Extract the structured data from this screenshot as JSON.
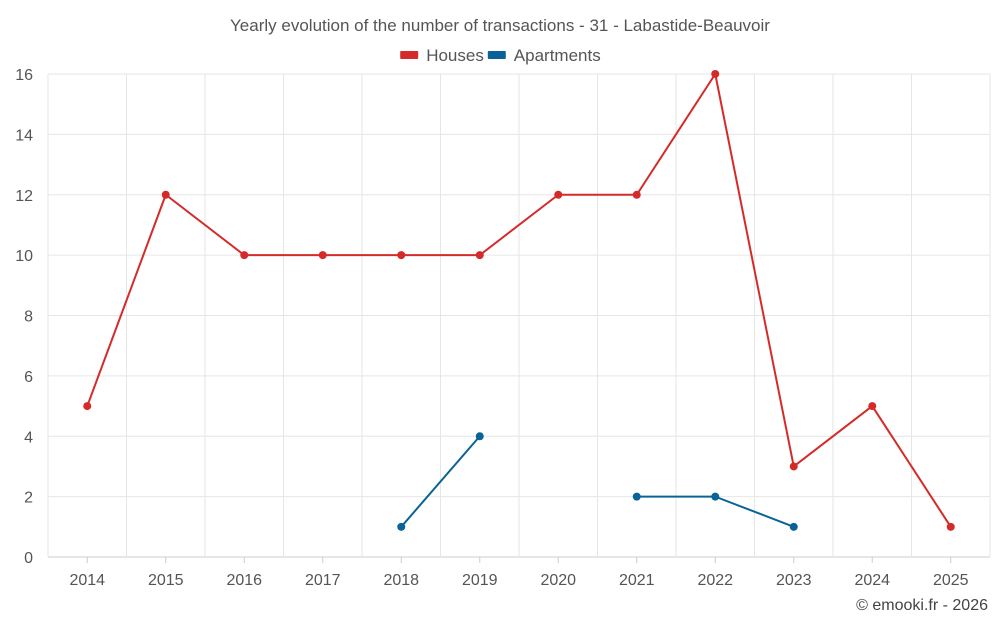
{
  "chart_data": {
    "type": "line",
    "title": "Yearly evolution of the number of transactions - 31 - Labastide-Beauvoir",
    "x": [
      "2014",
      "2015",
      "2016",
      "2017",
      "2018",
      "2019",
      "2020",
      "2021",
      "2022",
      "2023",
      "2024",
      "2025"
    ],
    "ylim": [
      0,
      16
    ],
    "yticks": [
      0,
      2,
      4,
      6,
      8,
      10,
      12,
      14,
      16
    ],
    "grid": true,
    "legend_position": "top-center",
    "series": [
      {
        "name": "Houses",
        "color": "#d42a2a",
        "values": [
          5,
          12,
          10,
          10,
          10,
          10,
          12,
          12,
          16,
          3,
          5,
          1
        ]
      },
      {
        "name": "Apartments",
        "color": "#0a6396",
        "values": [
          null,
          null,
          null,
          null,
          1,
          4,
          null,
          2,
          2,
          1,
          null,
          null
        ]
      }
    ],
    "xlabel": "",
    "ylabel": ""
  },
  "credit": "© emooki.fr - 2026"
}
